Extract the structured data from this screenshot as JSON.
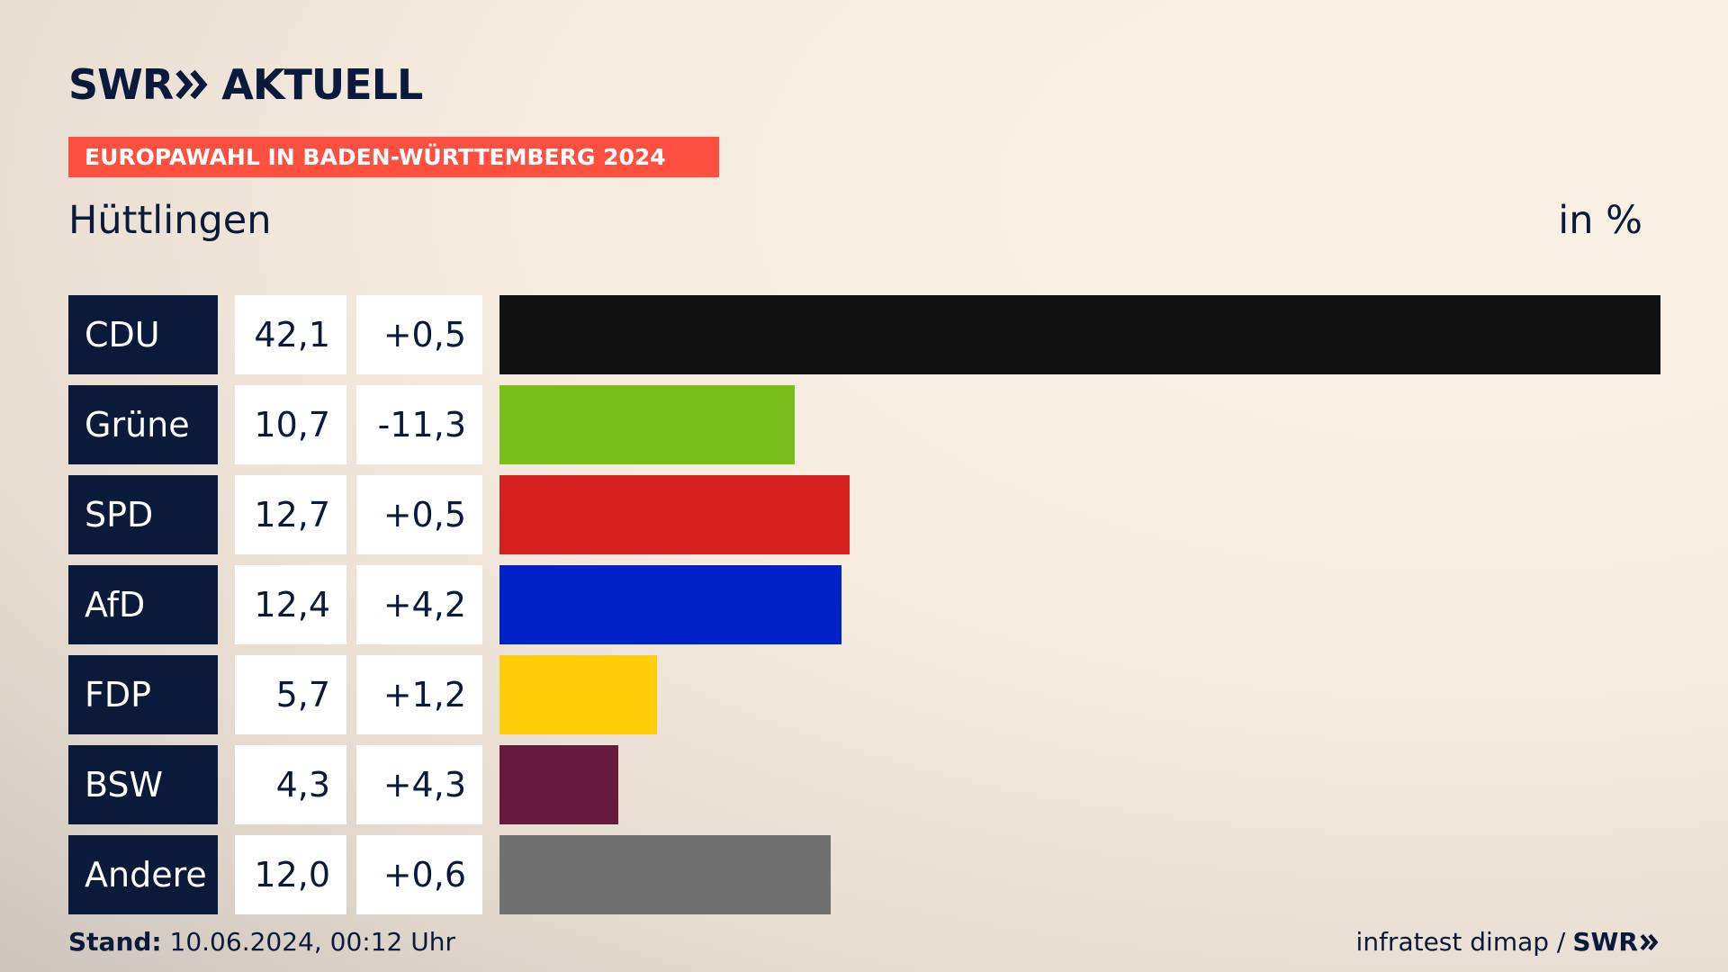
{
  "brand": {
    "name": "SWR",
    "product": "AKTUELL",
    "footer_brand": "SWR"
  },
  "banner": {
    "text": "EUROPAWAHL IN BADEN-WÜRTTEMBERG 2024",
    "color": "#ff4f3f"
  },
  "region": "Hüttlingen",
  "unit": "in %",
  "footer": {
    "stand_label": "Stand:",
    "stand_value": "10.06.2024, 00:12 Uhr",
    "source": "infratest dimap /"
  },
  "chart_data": {
    "type": "bar",
    "orientation": "horizontal",
    "categories": [
      "CDU",
      "Grüne",
      "SPD",
      "AfD",
      "FDP",
      "BSW",
      "Andere"
    ],
    "values": [
      42.1,
      10.7,
      12.7,
      12.4,
      5.7,
      4.3,
      12.0
    ],
    "value_labels": [
      "42,1",
      "10,7",
      "12,7",
      "12,4",
      "5,7",
      "4,3",
      "12,0"
    ],
    "diff_labels": [
      "+0,5",
      "-11,3",
      "+0,5",
      "+4,2",
      "+1,2",
      "+4,3",
      "+0,6"
    ],
    "colors": [
      "#121212",
      "#7bbd1d",
      "#d61f1f",
      "#0022c8",
      "#ffcd0a",
      "#661a3e",
      "#717171"
    ],
    "xlim": [
      0,
      42.1
    ]
  }
}
